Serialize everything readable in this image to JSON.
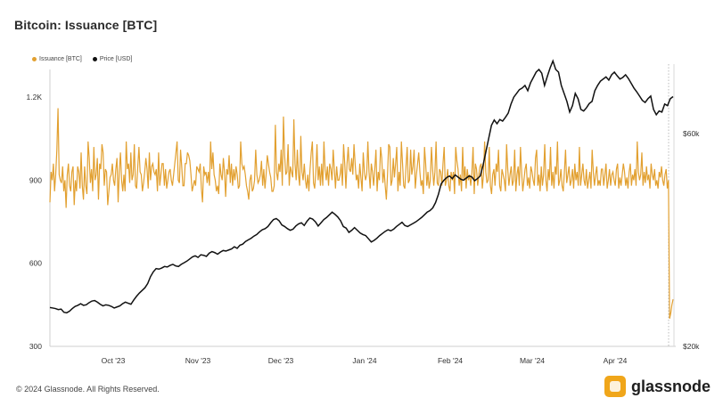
{
  "title": "Bitcoin: Issuance [BTC]",
  "footer": "© 2024 Glassnode. All Rights Reserved.",
  "brand": "glassnode",
  "chart_data": {
    "type": "line",
    "legend_position": "top-left",
    "grid": false,
    "x_ticks": [
      "Oct '23",
      "Nov '23",
      "Dec '23",
      "Jan '24",
      "Feb '24",
      "Mar '24",
      "Apr '24"
    ],
    "y_left": {
      "ticks": [
        "300",
        "600",
        "900",
        "1.2K"
      ],
      "range": [
        300,
        1300
      ]
    },
    "y_right": {
      "ticks": [
        "$20k",
        "$60k"
      ],
      "range": [
        20000,
        72000
      ]
    },
    "series": [
      {
        "name": "Issuance [BTC]",
        "color": "#e2a030",
        "axis": "left",
        "values": [
          820,
          930,
          900,
          960,
          860,
          920,
          1010,
          1160,
          920,
          900,
          890,
          950,
          860,
          900,
          800,
          920,
          960,
          880,
          860,
          930,
          950,
          810,
          900,
          860,
          950,
          930,
          870,
          1000,
          880,
          830,
          950,
          880,
          850,
          1040,
          980,
          890,
          940,
          860,
          1020,
          900,
          920,
          980,
          830,
          960,
          940,
          1030,
          1000,
          880,
          940,
          930,
          810,
          860,
          910,
          920,
          960,
          900,
          880,
          940,
          980,
          820,
          930,
          1000,
          900,
          860,
          920,
          860,
          1040,
          940,
          960,
          890,
          1000,
          900,
          920,
          1030,
          880,
          870,
          950,
          1020,
          930,
          920,
          860,
          890,
          930,
          980,
          940,
          870,
          1000,
          900,
          950,
          960,
          930,
          920,
          940,
          860,
          1000,
          880,
          920,
          960,
          960,
          880,
          940,
          870,
          900,
          930,
          940,
          900,
          880,
          920,
          960,
          1000,
          1040,
          900,
          890,
          1010,
          950,
          880,
          880,
          960,
          960,
          1000,
          990,
          970,
          920,
          860,
          880,
          900,
          880,
          950,
          940,
          930,
          960,
          870,
          820,
          950,
          920,
          930,
          890,
          930,
          880,
          1040,
          940,
          1000,
          920,
          900,
          860,
          880,
          850,
          960,
          920,
          900,
          980,
          930,
          840,
          940,
          920,
          990,
          890,
          960,
          880,
          940,
          900,
          950,
          920,
          870,
          880,
          1040,
          960,
          940,
          950,
          920,
          880,
          860,
          830,
          900,
          920,
          860,
          870,
          900,
          1010,
          920,
          890,
          900,
          920,
          970,
          880,
          940,
          870,
          920,
          990,
          960,
          930,
          910,
          860,
          860,
          880,
          1100,
          930,
          900,
          960,
          930,
          1010,
          880,
          1130,
          990,
          920,
          930,
          1030,
          880,
          950,
          930,
          910,
          1120,
          960,
          900,
          1010,
          920,
          880,
          1060,
          930,
          900,
          960,
          900,
          870,
          920,
          860,
          940,
          1000,
          1040,
          890,
          870,
          930,
          1030,
          900,
          950,
          880,
          960,
          880,
          1040,
          940,
          900,
          950,
          880,
          960,
          940,
          900,
          1010,
          940,
          870,
          950,
          900,
          900,
          920,
          960,
          880,
          1030,
          960,
          870,
          960,
          1020,
          940,
          930,
          980,
          920,
          1030,
          960,
          900,
          920,
          870,
          960,
          910,
          860,
          1000,
          930,
          900,
          920,
          1040,
          930,
          870,
          960,
          930,
          880,
          940,
          1010,
          860,
          930,
          900,
          1020,
          980,
          890,
          940,
          880,
          830,
          920,
          1030,
          1020,
          880,
          900,
          980,
          910,
          960,
          1020,
          860,
          930,
          880,
          1040,
          960,
          880,
          870,
          950,
          1020,
          890,
          900,
          1010,
          920,
          950,
          1010,
          870,
          920,
          960,
          1000,
          930,
          880,
          900,
          850,
          1020,
          960,
          880,
          930,
          870,
          900,
          1020,
          940,
          880,
          930,
          1040,
          890,
          880,
          940,
          930,
          880,
          960,
          1020,
          880,
          900,
          940,
          880,
          860,
          930,
          900,
          930,
          850,
          1020,
          970,
          940,
          880,
          920,
          860,
          1020,
          900,
          950,
          870,
          940,
          900,
          920,
          880,
          930,
          1020,
          850,
          960,
          940,
          880,
          920,
          950,
          960,
          870,
          920,
          1040,
          930,
          890,
          900,
          1020,
          880,
          850,
          920,
          940,
          880,
          960,
          930,
          1010,
          880,
          860,
          940,
          920,
          900,
          860,
          1030,
          940,
          880,
          920,
          950,
          880,
          900,
          1010,
          860,
          920,
          950,
          880,
          1020,
          930,
          860,
          900,
          940,
          960,
          880,
          910,
          870,
          950,
          930,
          900,
          880,
          980,
          1010,
          880,
          920,
          860,
          950,
          880,
          920,
          1030,
          900,
          860,
          940,
          900,
          1020,
          880,
          930,
          870,
          950,
          920,
          1040,
          880,
          900,
          940,
          880,
          860,
          930,
          1010,
          890,
          920,
          950,
          880,
          900,
          940,
          870,
          960,
          900,
          930,
          880,
          1020,
          880,
          920,
          960,
          900,
          880,
          940,
          870,
          900,
          930,
          870,
          1010,
          930,
          880,
          920,
          950,
          880,
          900,
          880,
          940,
          940,
          880,
          920,
          960,
          870,
          900,
          940,
          880,
          920,
          930,
          900,
          880,
          940,
          960,
          870,
          910,
          880,
          920,
          960,
          930,
          880,
          910,
          870,
          930,
          960,
          880,
          920,
          900,
          940,
          880,
          1040,
          930,
          900,
          920,
          1000,
          880,
          930,
          890,
          950,
          900,
          920,
          870,
          960,
          920,
          900,
          940,
          880,
          900,
          870,
          930,
          910,
          950,
          900,
          880,
          920,
          940,
          870,
          900,
          400,
          420,
          450,
          470
        ]
      },
      {
        "name": "Price [USD]",
        "color": "#111111",
        "axis": "right",
        "values": [
          27300,
          27200,
          27100,
          26900,
          27000,
          26400,
          26300,
          26600,
          27100,
          27500,
          27700,
          28000,
          27700,
          27800,
          28200,
          28500,
          28600,
          28300,
          27900,
          27600,
          27800,
          27700,
          27500,
          27200,
          27400,
          27600,
          28000,
          28300,
          28100,
          27900,
          28700,
          29400,
          30000,
          30500,
          31000,
          31800,
          33100,
          34000,
          34600,
          34500,
          34700,
          35000,
          34900,
          35200,
          35400,
          35100,
          35000,
          35400,
          35700,
          36000,
          36400,
          36800,
          37000,
          36700,
          37200,
          37100,
          36900,
          37500,
          37800,
          37600,
          37300,
          37700,
          38000,
          37900,
          38100,
          38300,
          38700,
          38400,
          39000,
          39200,
          39700,
          40000,
          40300,
          40700,
          41000,
          41500,
          41900,
          42100,
          42500,
          43200,
          43800,
          44000,
          43600,
          42800,
          42500,
          42100,
          41800,
          42000,
          42600,
          43000,
          43200,
          42700,
          43500,
          44100,
          43900,
          43400,
          42600,
          43200,
          43800,
          44200,
          44700,
          45200,
          44800,
          44300,
          43600,
          42500,
          42200,
          41400,
          41800,
          42300,
          41800,
          41300,
          41000,
          40800,
          40200,
          39600,
          39900,
          40300,
          40800,
          41200,
          41600,
          41900,
          41700,
          42000,
          42500,
          42900,
          43300,
          42700,
          42500,
          42800,
          43100,
          43400,
          43800,
          44200,
          44700,
          45200,
          45500,
          46000,
          47000,
          48500,
          50500,
          51200,
          51700,
          52000,
          51500,
          52200,
          51800,
          51400,
          51200,
          51600,
          52000,
          51800,
          51100,
          51500,
          52000,
          54000,
          56500,
          59000,
          61500,
          62500,
          61800,
          62600,
          62300,
          63000,
          63800,
          65500,
          66800,
          67500,
          68200,
          68500,
          69000,
          68000,
          69500,
          70500,
          71500,
          72000,
          71300,
          69000,
          70700,
          72300,
          73600,
          72000,
          71500,
          69000,
          67500,
          66000,
          64000,
          65200,
          67500,
          66500,
          64500,
          64200,
          64800,
          65600,
          66000,
          68000,
          69000,
          69800,
          70200,
          70600,
          70000,
          71000,
          71500,
          70800,
          70200,
          70500,
          71000,
          70300,
          69400,
          68500,
          67800,
          67000,
          66200,
          65800,
          66500,
          67000,
          64500,
          63500,
          64200,
          64000,
          65500,
          65200,
          66500,
          66900
        ]
      }
    ]
  }
}
